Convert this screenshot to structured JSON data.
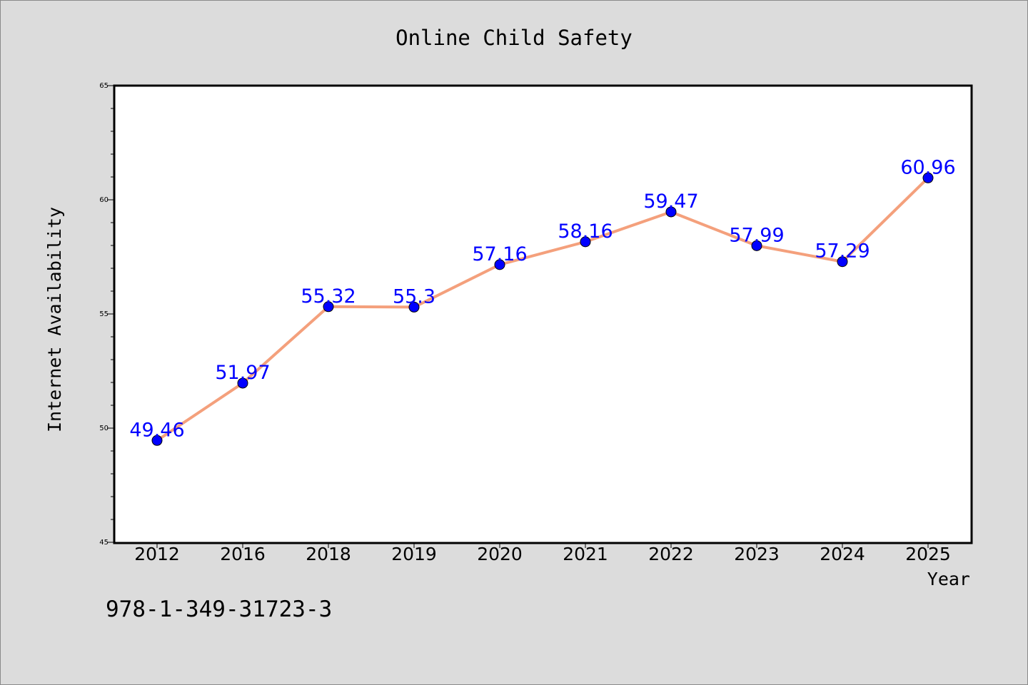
{
  "chart_data": {
    "type": "line",
    "title": "Online Child Safety",
    "xlabel": "Year",
    "ylabel": "Internet Availability",
    "categories": [
      "2012",
      "2016",
      "2018",
      "2019",
      "2020",
      "2021",
      "2022",
      "2023",
      "2024",
      "2025"
    ],
    "series": [
      {
        "values": [
          49.46,
          51.97,
          55.32,
          55.3,
          57.16,
          58.16,
          59.47,
          57.99,
          57.29,
          60.96
        ],
        "labels": [
          "49.46",
          "51.97",
          "55.32",
          "55.3",
          "57.16",
          "58.16",
          "59.47",
          "57.99",
          "57.29",
          "60.96"
        ]
      }
    ],
    "ylim": [
      45,
      65
    ],
    "yticks": [
      "45",
      "50",
      "55",
      "60",
      "65"
    ],
    "grid": false,
    "colors": {
      "line": "#f4a07c",
      "marker": "#0000ff",
      "label": "#0000ff",
      "plot_bg": "#ffffff",
      "page_bg": "#dcdcdc"
    }
  },
  "footer_text": "978-1-349-31723-3"
}
